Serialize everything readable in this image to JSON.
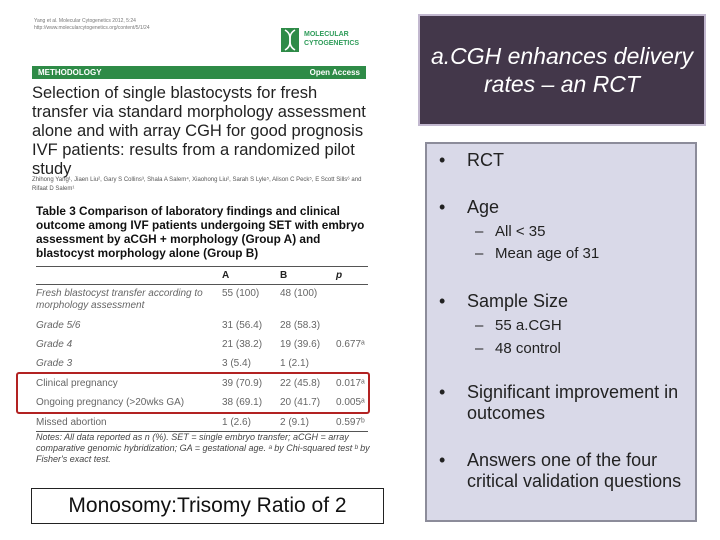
{
  "article": {
    "journal_meta": [
      "Yang et al. Molecular Cytogenetics 2012, 5:24",
      "http://www.molecularcytogenetics.org/content/5/1/24"
    ],
    "logo_text": [
      "MOLECULAR",
      "CYTOGENETICS"
    ],
    "section_label": "METHODOLOGY",
    "access_label": "Open Access",
    "title": "Selection of single blastocysts for fresh transfer via standard morphology assessment alone and with array CGH for good prognosis IVF patients: results from a randomized pilot study",
    "authors": "Zhihong Yang¹, Jiaen Liu², Gary S Collins³, Shala A Salem⁴, Xiaohong Liu², Sarah S Lyle⁵, Alison C Peck⁵, E Scott Sills⁶ and Rifaat D Salem¹"
  },
  "table": {
    "title": "Table 3 Comparison of laboratory findings and clinical outcome among IVF patients undergoing SET with embryo assessment by aCGH + morphology (Group A) and blastocyst morphology alone (Group B)",
    "headers": [
      "A",
      "B",
      "p"
    ],
    "rows": [
      {
        "label": "Fresh blastocyst transfer according to morphology assessment",
        "a": "55 (100)",
        "b": "48 (100)",
        "p": ""
      },
      {
        "label": "Grade 5/6",
        "a": "31 (56.4)",
        "b": "28 (58.3)",
        "p": ""
      },
      {
        "label": "Grade 4",
        "a": "21 (38.2)",
        "b": "19 (39.6)",
        "p": "0.677ᵃ"
      },
      {
        "label": "Grade 3",
        "a": "3 (5.4)",
        "b": "1 (2.1)",
        "p": ""
      },
      {
        "label": "Clinical pregnancy",
        "a": "39 (70.9)",
        "b": "22 (45.8)",
        "p": "0.017ᵃ"
      },
      {
        "label": "Ongoing pregnancy (>20wks GA)",
        "a": "38 (69.1)",
        "b": "20 (41.7)",
        "p": "0.005ᵃ"
      },
      {
        "label": "Missed abortion",
        "a": "1 (2.6)",
        "b": "2 (9.1)",
        "p": "0.597ᵇ"
      }
    ],
    "notes": "Notes: All data reported as n (%). SET = single embryo transfer; aCGH = array comparative genomic hybridization; GA = gestational age. ᵃ by Chi-squared test ᵇ by Fisher's exact test."
  },
  "caption": "Monosomy:Trisomy Ratio of 2",
  "slide_title": "a.CGH enhances delivery rates – an RCT",
  "bullets": [
    {
      "text": "RCT",
      "sub": []
    },
    {
      "text": "Age",
      "sub": [
        "All < 35",
        "Mean age of 31"
      ]
    },
    {
      "text": "Sample Size",
      "sub": [
        "55 a.CGH",
        "48 control"
      ]
    },
    {
      "text": "Significant improvement in outcomes",
      "sub": []
    },
    {
      "text": "Answers one of the four critical validation questions",
      "sub": []
    }
  ],
  "colors": {
    "title_bg": "#43374a",
    "bullet_bg": "#d9d9e8",
    "highlight": "#b22222",
    "journal_green": "#2e8b47"
  }
}
